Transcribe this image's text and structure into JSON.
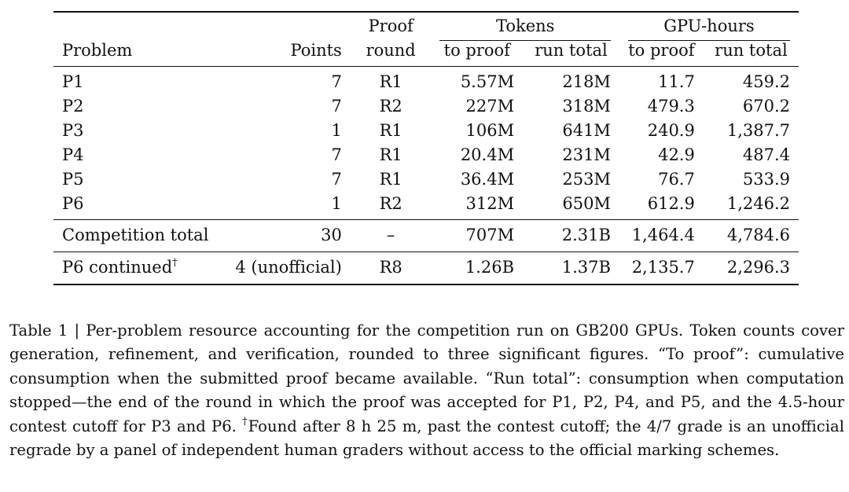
{
  "table": {
    "header_top": {
      "proof_round_top": "Proof",
      "tokens_group": "Tokens",
      "gpu_group": "GPU-hours"
    },
    "header": {
      "problem": "Problem",
      "points": "Points",
      "proof_round": "round",
      "tokens_to_proof": "to proof",
      "tokens_run_total": "run total",
      "gpu_to_proof": "to proof",
      "gpu_run_total": "run total"
    },
    "rows": [
      {
        "problem": "P1",
        "points": "7",
        "round": "R1",
        "tok_proof": "5.57M",
        "tok_total": "218M",
        "gpu_proof": "11.7",
        "gpu_total": "459.2"
      },
      {
        "problem": "P2",
        "points": "7",
        "round": "R2",
        "tok_proof": "227M",
        "tok_total": "318M",
        "gpu_proof": "479.3",
        "gpu_total": "670.2"
      },
      {
        "problem": "P3",
        "points": "1",
        "round": "R1",
        "tok_proof": "106M",
        "tok_total": "641M",
        "gpu_proof": "240.9",
        "gpu_total": "1,387.7"
      },
      {
        "problem": "P4",
        "points": "7",
        "round": "R1",
        "tok_proof": "20.4M",
        "tok_total": "231M",
        "gpu_proof": "42.9",
        "gpu_total": "487.4"
      },
      {
        "problem": "P5",
        "points": "7",
        "round": "R1",
        "tok_proof": "36.4M",
        "tok_total": "253M",
        "gpu_proof": "76.7",
        "gpu_total": "533.9"
      },
      {
        "problem": "P6",
        "points": "1",
        "round": "R2",
        "tok_proof": "312M",
        "tok_total": "650M",
        "gpu_proof": "612.9",
        "gpu_total": "1,246.2"
      }
    ],
    "total": {
      "problem": "Competition total",
      "points": "30",
      "round": "–",
      "tok_proof": "707M",
      "tok_total": "2.31B",
      "gpu_proof": "1,464.4",
      "gpu_total": "4,784.6"
    },
    "continued": {
      "problem": "P6 continued",
      "dagger": "†",
      "points": "4 (unofficial)",
      "round": "R8",
      "tok_proof": "1.26B",
      "tok_total": "1.37B",
      "gpu_proof": "2,135.7",
      "gpu_total": "2,296.3"
    }
  },
  "caption": {
    "label": "Table 1 | ",
    "text1": "Per-problem resource accounting for the competition run on GB200 GPUs. Token counts cover generation, refinement, and verification, rounded to three significant figures. “To proof”: cumulative consumption when the submitted proof became available. “Run total”: consumption when computation stopped—the end of the round in which the proof was accepted for P1, P2, P4, and P5, and the 4.5-hour contest cutoff for P3 and P6. ",
    "dagger": "†",
    "text2": "Found after 8 h 25 m, past the contest cutoff; the 4/7 grade is an unofficial regrade by a panel of independent human graders without access to the official marking schemes."
  }
}
